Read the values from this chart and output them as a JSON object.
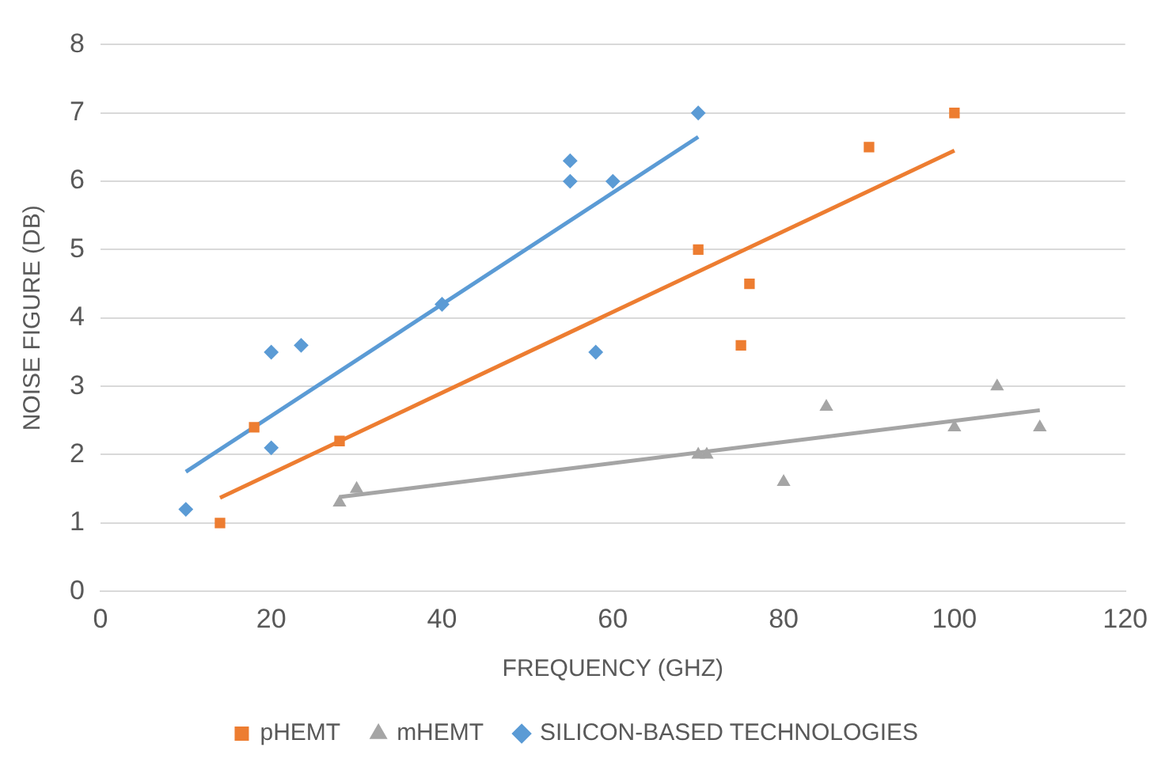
{
  "chart_data": {
    "type": "scatter",
    "xlabel": "FREQUENCY (GHZ)",
    "ylabel": "NOISE FIGURE (DB)",
    "xlim": [
      0,
      120
    ],
    "xticks": [
      0,
      20,
      40,
      60,
      80,
      100,
      120
    ],
    "ylim": [
      0,
      8
    ],
    "yticks": [
      0,
      1,
      2,
      3,
      4,
      5,
      6,
      7,
      8
    ],
    "grid": "y",
    "legend": "bottom",
    "series": [
      {
        "name": "pHEMT",
        "color": "#ed7d31",
        "marker": "square",
        "x": [
          14,
          18,
          28,
          70,
          75,
          76,
          90,
          100
        ],
        "values": [
          1.0,
          2.4,
          2.2,
          5.0,
          3.6,
          4.5,
          6.5,
          7.0
        ]
      },
      {
        "name": "mHEMT",
        "color": "#a5a5a5",
        "marker": "triangle",
        "x": [
          28,
          30,
          70,
          71,
          80,
          85,
          100,
          105,
          110
        ],
        "values": [
          1.3,
          1.5,
          2.0,
          2.0,
          1.6,
          2.7,
          2.4,
          3.0,
          2.4
        ]
      },
      {
        "name": "SILICON-BASED TECHNOLOGIES",
        "color": "#5b9bd5",
        "marker": "diamond",
        "x": [
          10,
          20,
          20,
          23.5,
          40,
          55,
          55,
          58,
          60,
          70
        ],
        "values": [
          1.2,
          3.5,
          2.1,
          3.6,
          4.2,
          6.3,
          6.0,
          3.5,
          6.0,
          7.0
        ]
      },
      {
        "type": "line",
        "color": "#ed7d31",
        "marker": "none",
        "x": [
          14,
          100
        ],
        "values": [
          1.37,
          6.45
        ]
      },
      {
        "type": "line",
        "color": "#a5a5a5",
        "marker": "none",
        "x": [
          28,
          110
        ],
        "values": [
          1.38,
          2.65
        ]
      },
      {
        "type": "line",
        "color": "#5b9bd5",
        "marker": "none",
        "x": [
          10,
          70
        ],
        "values": [
          1.75,
          6.65
        ]
      }
    ]
  }
}
